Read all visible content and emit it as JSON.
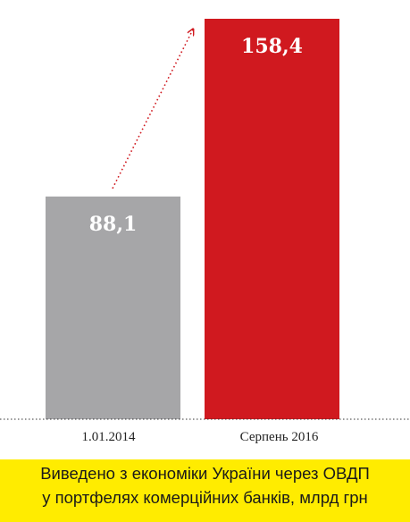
{
  "chart_data": {
    "type": "bar",
    "categories": [
      "1.01.2014",
      "Серпень 2016"
    ],
    "values": [
      88.1,
      158.4
    ],
    "value_labels": [
      "88,1",
      "158,4"
    ],
    "colors": [
      "#a6a6a8",
      "#d0191f"
    ],
    "ylim": [
      0,
      158.4
    ],
    "grid": false,
    "annotation": "dotted arrow from first bar to second bar"
  },
  "caption": {
    "line1": "Виведено з економіки України через ОВДП",
    "line2": "у портфелях комерційних банків, млрд грн"
  }
}
